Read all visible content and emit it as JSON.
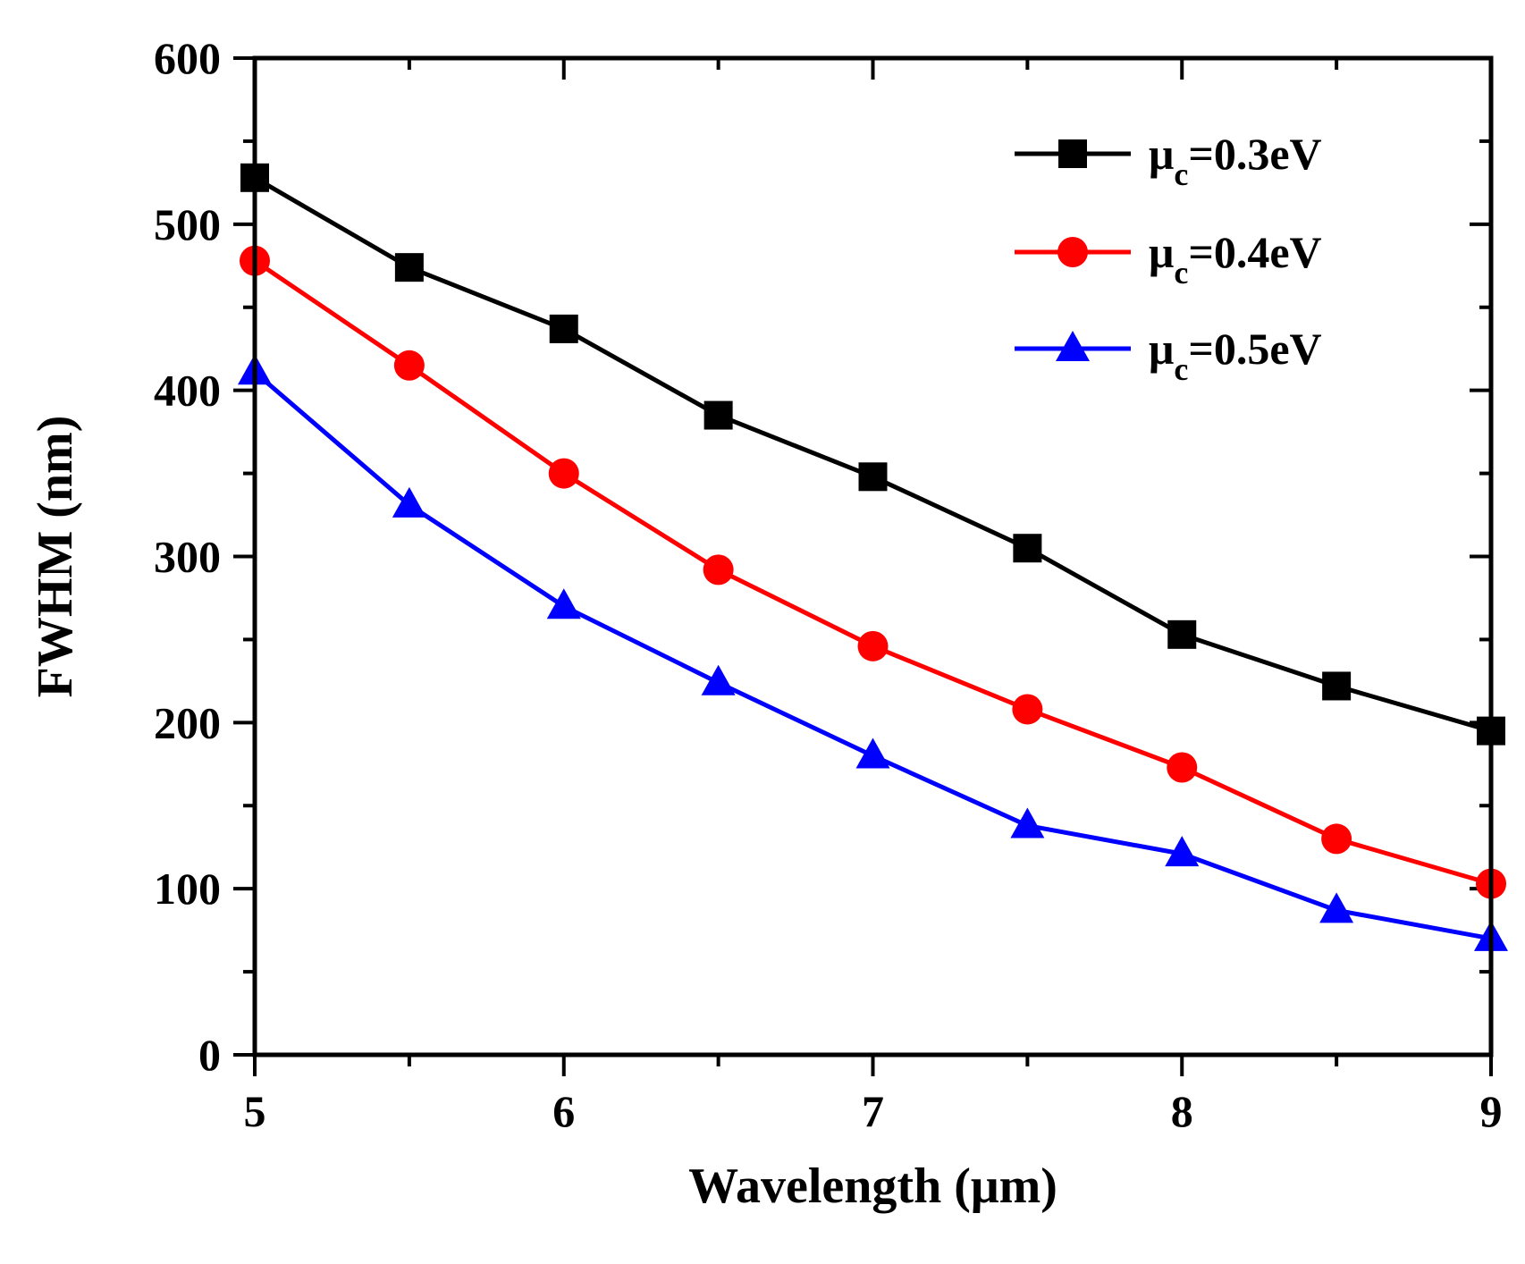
{
  "chart_data": {
    "type": "line",
    "title": "",
    "xlabel": "Wavelength (μm)",
    "ylabel": "FWHM (nm)",
    "xlim": [
      5,
      9
    ],
    "ylim": [
      0,
      600
    ],
    "xticks": [
      5,
      6,
      7,
      8,
      9
    ],
    "yticks": [
      0,
      100,
      200,
      300,
      400,
      500,
      600
    ],
    "x": [
      5,
      5.5,
      6,
      6.5,
      7,
      7.5,
      8,
      8.5,
      9
    ],
    "grid": false,
    "legend_position": "top-right",
    "series": [
      {
        "name": "μc=0.3eV",
        "symbol": "μ",
        "subscript": "c",
        "value_text": "=0.3eV",
        "color": "#000000",
        "marker": "square",
        "values": [
          528,
          474,
          437,
          385,
          348,
          305,
          253,
          222,
          195
        ]
      },
      {
        "name": "μc=0.4eV",
        "symbol": "μ",
        "subscript": "c",
        "value_text": "=0.4eV",
        "color": "#ff0000",
        "marker": "circle",
        "values": [
          478,
          415,
          350,
          292,
          246,
          208,
          173,
          130,
          103
        ]
      },
      {
        "name": "μc=0.5eV",
        "symbol": "μ",
        "subscript": "c",
        "value_text": "=0.5eV",
        "color": "#0000ff",
        "marker": "triangle",
        "values": [
          411,
          331,
          270,
          224,
          180,
          138,
          121,
          87,
          70
        ]
      }
    ]
  }
}
